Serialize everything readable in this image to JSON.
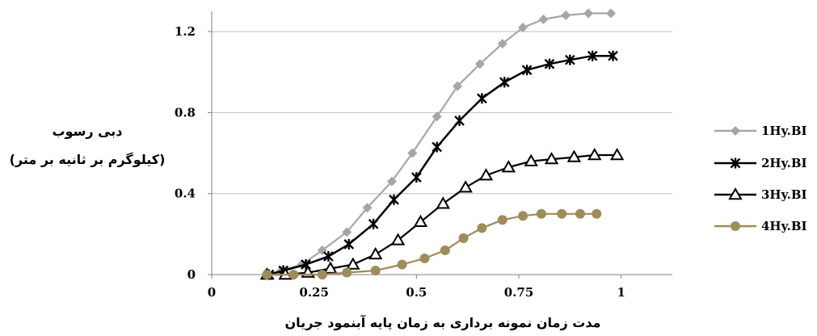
{
  "chart_data": {
    "type": "line",
    "xlabel": "مدت زمان نمونه برداری به زمان پایه آبنمود جریان",
    "ylabel_lines": [
      "دبی رسوب",
      "(کیلوگرم بر ثانیه بر متر)"
    ],
    "xlim": [
      0,
      1.125
    ],
    "ylim": [
      0,
      1.3
    ],
    "xticks": [
      0,
      0.25,
      0.5,
      0.75,
      1
    ],
    "xtick_labels": [
      "0",
      "0.25",
      "0.5",
      "0.75",
      "1"
    ],
    "yticks": [
      0,
      0.4,
      0.8,
      1.2
    ],
    "ytick_labels": [
      "0",
      "0.4",
      "0.8",
      "1.2"
    ],
    "grid": "horizontal",
    "legend_position": "right",
    "series": [
      {
        "name": "1Hy.BI",
        "color": "#a6a6a6",
        "marker": "diamond",
        "x": [
          0.135,
          0.17,
          0.22,
          0.27,
          0.33,
          0.38,
          0.44,
          0.49,
          0.55,
          0.6,
          0.655,
          0.71,
          0.76,
          0.81,
          0.865,
          0.92,
          0.975
        ],
        "y": [
          0.0,
          0.02,
          0.05,
          0.12,
          0.21,
          0.33,
          0.46,
          0.6,
          0.78,
          0.93,
          1.04,
          1.14,
          1.22,
          1.26,
          1.28,
          1.29,
          1.29
        ]
      },
      {
        "name": "2Hy.BI",
        "color": "#000000",
        "marker": "star",
        "x": [
          0.14,
          0.175,
          0.23,
          0.285,
          0.335,
          0.395,
          0.445,
          0.5,
          0.55,
          0.605,
          0.66,
          0.715,
          0.77,
          0.825,
          0.875,
          0.93,
          0.98
        ],
        "y": [
          0.0,
          0.02,
          0.05,
          0.09,
          0.15,
          0.25,
          0.37,
          0.48,
          0.63,
          0.76,
          0.87,
          0.95,
          1.01,
          1.04,
          1.06,
          1.08,
          1.08
        ]
      },
      {
        "name": "3Hy.BI",
        "color": "#000000",
        "marker": "triangle",
        "x": [
          0.135,
          0.18,
          0.235,
          0.29,
          0.345,
          0.4,
          0.455,
          0.51,
          0.565,
          0.62,
          0.67,
          0.725,
          0.78,
          0.83,
          0.885,
          0.935,
          0.99
        ],
        "y": [
          0.0,
          0.0,
          0.01,
          0.03,
          0.05,
          0.1,
          0.17,
          0.26,
          0.35,
          0.43,
          0.49,
          0.53,
          0.56,
          0.57,
          0.58,
          0.59,
          0.59
        ]
      },
      {
        "name": "4Hy.BI",
        "color": "#9e8c5a",
        "marker": "circle",
        "x": [
          0.135,
          0.2,
          0.27,
          0.33,
          0.4,
          0.465,
          0.52,
          0.57,
          0.615,
          0.66,
          0.71,
          0.76,
          0.805,
          0.855,
          0.9,
          0.94
        ],
        "y": [
          0.0,
          0.0,
          0.0,
          0.01,
          0.02,
          0.05,
          0.08,
          0.12,
          0.18,
          0.23,
          0.27,
          0.29,
          0.3,
          0.3,
          0.3,
          0.3
        ]
      }
    ]
  }
}
